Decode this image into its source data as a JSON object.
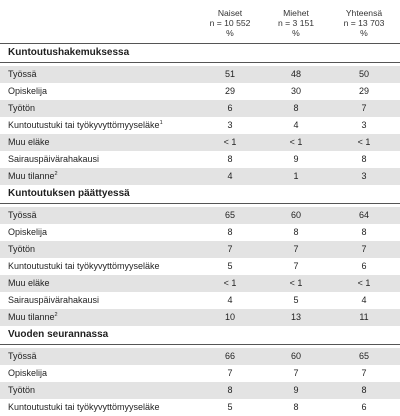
{
  "columns": [
    {
      "label": "Naiset",
      "n": "n = 10 552",
      "unit": "%"
    },
    {
      "label": "Miehet",
      "n": "n = 3 151",
      "unit": "%"
    },
    {
      "label": "Yhteensä",
      "n": "n = 13 703",
      "unit": "%"
    }
  ],
  "sections": [
    {
      "title": "Kuntoutushakemuksessa",
      "rows": [
        {
          "label": "Työssä",
          "sup": "",
          "values": [
            "51",
            "48",
            "50"
          ]
        },
        {
          "label": "Opiskelija",
          "sup": "",
          "values": [
            "29",
            "30",
            "29"
          ]
        },
        {
          "label": "Työtön",
          "sup": "",
          "values": [
            "6",
            "8",
            "7"
          ]
        },
        {
          "label": "Kuntoutustuki tai työkyvyttömyyseläke",
          "sup": "1",
          "values": [
            "3",
            "4",
            "3"
          ]
        },
        {
          "label": "Muu eläke",
          "sup": "",
          "values": [
            "< 1",
            "< 1",
            "< 1"
          ]
        },
        {
          "label": "Sairauspäivärahakausi",
          "sup": "",
          "values": [
            "8",
            "9",
            "8"
          ]
        },
        {
          "label": "Muu tilanne",
          "sup": "2",
          "values": [
            "4",
            "1",
            "3"
          ]
        }
      ]
    },
    {
      "title": "Kuntoutuksen päättyessä",
      "rows": [
        {
          "label": "Työssä",
          "sup": "",
          "values": [
            "65",
            "60",
            "64"
          ]
        },
        {
          "label": "Opiskelija",
          "sup": "",
          "values": [
            "8",
            "8",
            "8"
          ]
        },
        {
          "label": "Työtön",
          "sup": "",
          "values": [
            "7",
            "7",
            "7"
          ]
        },
        {
          "label": "Kuntoutustuki tai työkyvyttömyyseläke",
          "sup": "",
          "values": [
            "5",
            "7",
            "6"
          ]
        },
        {
          "label": "Muu eläke",
          "sup": "",
          "values": [
            "< 1",
            "< 1",
            "< 1"
          ]
        },
        {
          "label": "Sairauspäivärahakausi",
          "sup": "",
          "values": [
            "4",
            "5",
            "4"
          ]
        },
        {
          "label": "Muu tilanne",
          "sup": "2",
          "values": [
            "10",
            "13",
            "11"
          ]
        }
      ]
    },
    {
      "title": "Vuoden seurannassa",
      "rows": [
        {
          "label": "Työssä",
          "sup": "",
          "values": [
            "66",
            "60",
            "65"
          ]
        },
        {
          "label": "Opiskelija",
          "sup": "",
          "values": [
            "7",
            "7",
            "7"
          ]
        },
        {
          "label": "Työtön",
          "sup": "",
          "values": [
            "8",
            "9",
            "8"
          ]
        },
        {
          "label": "Kuntoutustuki tai työkyvyttömyyseläke",
          "sup": "",
          "values": [
            "5",
            "8",
            "6"
          ]
        }
      ]
    }
  ]
}
